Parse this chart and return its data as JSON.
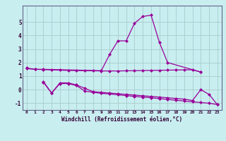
{
  "background_color": "#c8eef0",
  "grid_color": "#aacccc",
  "line_color": "#990099",
  "marker_color": "#990099",
  "xlabel": "Windchill (Refroidissement éolien,°C)",
  "xlim": [
    -0.5,
    23.5
  ],
  "ylim": [
    -1.5,
    6.2
  ],
  "yticks": [
    -1,
    0,
    1,
    2,
    3,
    4,
    5
  ],
  "xticks": [
    0,
    1,
    2,
    3,
    4,
    5,
    6,
    7,
    8,
    9,
    10,
    11,
    12,
    13,
    14,
    15,
    16,
    17,
    18,
    19,
    20,
    21,
    22,
    23
  ],
  "series": [
    {
      "x": [
        0,
        1,
        2,
        9,
        10,
        11,
        12,
        13,
        14,
        15,
        16,
        17,
        21
      ],
      "y": [
        1.6,
        1.5,
        1.5,
        1.4,
        2.6,
        3.6,
        3.6,
        4.9,
        5.4,
        5.5,
        3.5,
        2.0,
        1.3
      ]
    },
    {
      "x": [
        0,
        1,
        2,
        3,
        4,
        5,
        6,
        7,
        8,
        9,
        10,
        11,
        12,
        13,
        14,
        15,
        16,
        17,
        18,
        19,
        20,
        21
      ],
      "y": [
        1.55,
        1.5,
        1.48,
        1.46,
        1.44,
        1.42,
        1.41,
        1.4,
        1.39,
        1.38,
        1.38,
        1.38,
        1.39,
        1.4,
        1.41,
        1.42,
        1.43,
        1.44,
        1.45,
        1.46,
        1.47,
        1.3
      ]
    },
    {
      "x": [
        2,
        3,
        4,
        5,
        6,
        7,
        8,
        9,
        10,
        11,
        12,
        13,
        14,
        15,
        16,
        17,
        18,
        19,
        20,
        21,
        22,
        23
      ],
      "y": [
        0.6,
        -0.25,
        0.5,
        0.5,
        0.35,
        0.1,
        -0.15,
        -0.2,
        -0.25,
        -0.3,
        -0.35,
        -0.4,
        -0.45,
        -0.5,
        -0.55,
        -0.6,
        -0.65,
        -0.7,
        -0.8,
        0.0,
        -0.35,
        -1.1
      ]
    },
    {
      "x": [
        2,
        3,
        4,
        5,
        6,
        7,
        8,
        9,
        10,
        11,
        12,
        13,
        14,
        15,
        16,
        17,
        18,
        19,
        20,
        21,
        22,
        23
      ],
      "y": [
        0.55,
        -0.25,
        0.45,
        0.45,
        0.3,
        -0.1,
        -0.2,
        -0.27,
        -0.32,
        -0.38,
        -0.44,
        -0.5,
        -0.55,
        -0.6,
        -0.66,
        -0.72,
        -0.78,
        -0.84,
        -0.9,
        -0.95,
        -1.0,
        -1.1
      ]
    }
  ]
}
